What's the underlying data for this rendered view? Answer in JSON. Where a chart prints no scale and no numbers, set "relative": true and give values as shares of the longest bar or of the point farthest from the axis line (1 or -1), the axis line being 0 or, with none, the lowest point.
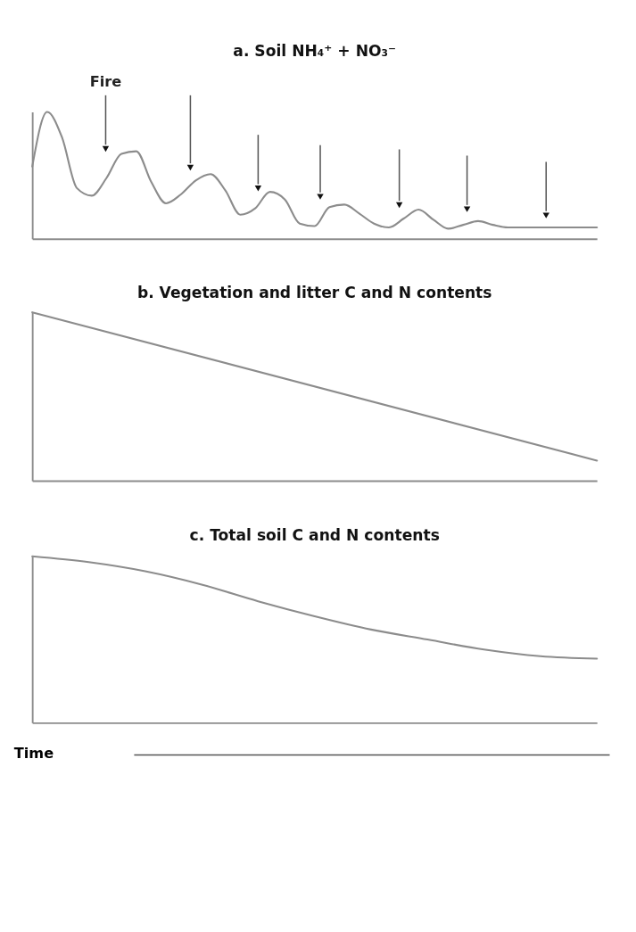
{
  "chart_data": [
    {
      "type": "line",
      "title": "a. Soil NH₄⁺ + NO₃⁻",
      "relative": true,
      "annotations": [
        "Fire"
      ],
      "categories": [
        null,
        null,
        null,
        null,
        null,
        null,
        null,
        null,
        null,
        null,
        null,
        null,
        null,
        null,
        null,
        null,
        null,
        null,
        null,
        null,
        null,
        null,
        null,
        null,
        null,
        null,
        null,
        null,
        null,
        null,
        null,
        null,
        null,
        null,
        null,
        null,
        null,
        null,
        null
      ],
      "series": [
        {
          "color": "#8c8c8c",
          "values": [
            0.57,
            1.0,
            0.8,
            0.4,
            0.34,
            0.48,
            0.67,
            0.69,
            0.45,
            0.28,
            0.35,
            0.46,
            0.51,
            0.38,
            0.19,
            0.24,
            0.37,
            0.31,
            0.12,
            0.1,
            0.25,
            0.27,
            0.2,
            0.12,
            0.09,
            0.16,
            0.23,
            0.15,
            0.08,
            0.11,
            0.14,
            0.11,
            0.09,
            0.09,
            0.09,
            0.09,
            0.09,
            0.09,
            0.09
          ]
        }
      ]
    },
    {
      "type": "line",
      "title": "b. Vegetation and litter C and N contents",
      "relative": true,
      "categories": [
        null,
        null
      ],
      "series": [
        {
          "color": "#8c8c8c",
          "values": [
            1.0,
            0.12
          ]
        }
      ]
    },
    {
      "type": "line",
      "title": "c. Total soil C and N contents",
      "xlabel": "Time",
      "relative": true,
      "categories": [
        null,
        null,
        null,
        null,
        null,
        null,
        null,
        null,
        null,
        null,
        null
      ],
      "series": [
        {
          "color": "#8c8c8c",
          "values": [
            1.0,
            0.965,
            0.91,
            0.83,
            0.73,
            0.64,
            0.56,
            0.5,
            0.44,
            0.4,
            0.385
          ]
        }
      ]
    }
  ]
}
